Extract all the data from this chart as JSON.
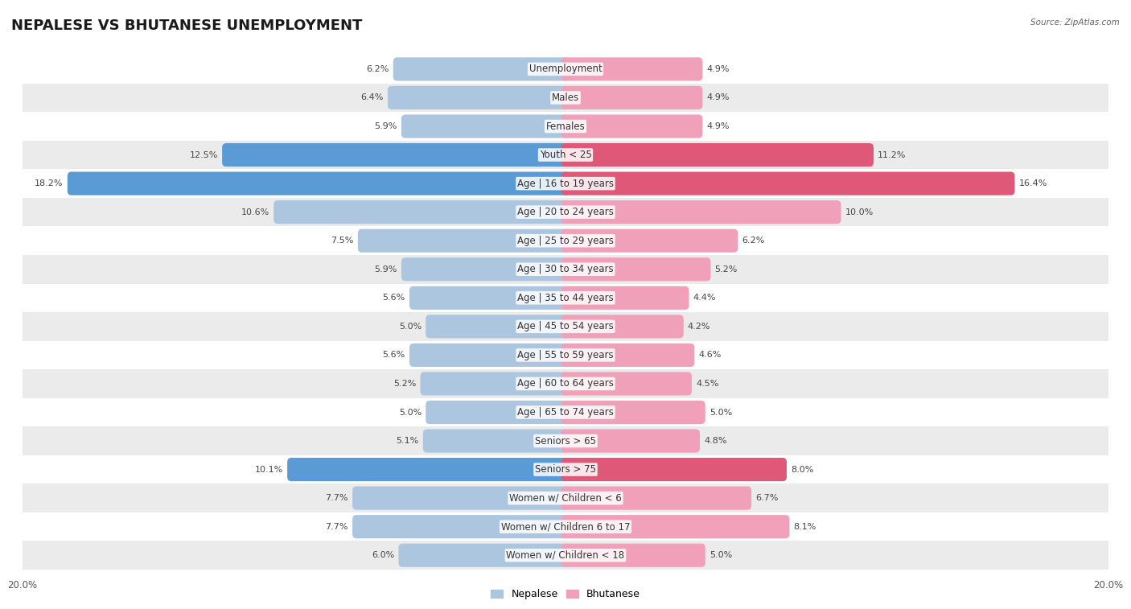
{
  "title": "NEPALESE VS BHUTANESE UNEMPLOYMENT",
  "source": "Source: ZipAtlas.com",
  "categories": [
    "Unemployment",
    "Males",
    "Females",
    "Youth < 25",
    "Age | 16 to 19 years",
    "Age | 20 to 24 years",
    "Age | 25 to 29 years",
    "Age | 30 to 34 years",
    "Age | 35 to 44 years",
    "Age | 45 to 54 years",
    "Age | 55 to 59 years",
    "Age | 60 to 64 years",
    "Age | 65 to 74 years",
    "Seniors > 65",
    "Seniors > 75",
    "Women w/ Children < 6",
    "Women w/ Children 6 to 17",
    "Women w/ Children < 18"
  ],
  "nepalese": [
    6.2,
    6.4,
    5.9,
    12.5,
    18.2,
    10.6,
    7.5,
    5.9,
    5.6,
    5.0,
    5.6,
    5.2,
    5.0,
    5.1,
    10.1,
    7.7,
    7.7,
    6.0
  ],
  "bhutanese": [
    4.9,
    4.9,
    4.9,
    11.2,
    16.4,
    10.0,
    6.2,
    5.2,
    4.4,
    4.2,
    4.6,
    4.5,
    5.0,
    4.8,
    8.0,
    6.7,
    8.1,
    5.0
  ],
  "nepalese_color": "#adc6e0",
  "bhutanese_color": "#f0a0b8",
  "nepalese_highlight_color": "#5b9bd5",
  "bhutanese_highlight_color": "#e05878",
  "highlight_rows": [
    3,
    4,
    14
  ],
  "fig_bg": "#ffffff",
  "row_bg_light": "#ffffff",
  "row_bg_dark": "#ebebeb",
  "max_val": 20.0,
  "legend_nepalese": "Nepalese",
  "legend_bhutanese": "Bhutanese",
  "title_fontsize": 13,
  "label_fontsize": 8.5,
  "value_fontsize": 8.0,
  "axis_tick_fontsize": 8.5
}
